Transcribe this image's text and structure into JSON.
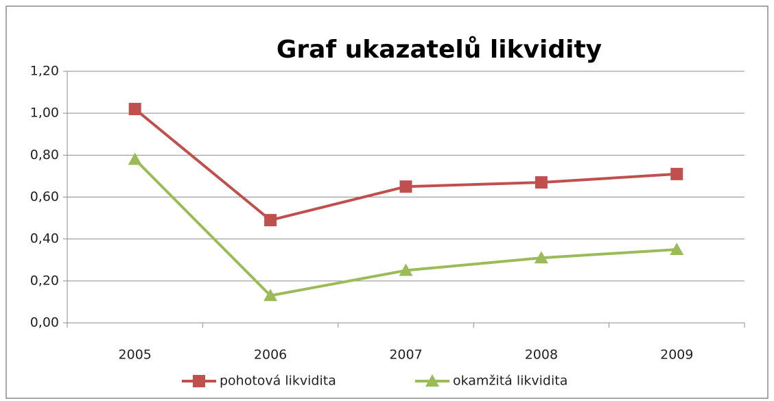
{
  "chart_data": {
    "type": "line",
    "title": "Graf ukazatelů likvidity",
    "categories": [
      "2005",
      "2006",
      "2007",
      "2008",
      "2009"
    ],
    "series": [
      {
        "name": "pohotová likvidita",
        "color": "#c0504d",
        "marker": "square",
        "values": [
          1.02,
          0.49,
          0.65,
          0.67,
          0.71
        ]
      },
      {
        "name": "okamžitá likvidita",
        "color": "#9bbb59",
        "marker": "triangle",
        "values": [
          0.78,
          0.13,
          0.25,
          0.31,
          0.35
        ]
      }
    ],
    "ylim": [
      0,
      1.2
    ],
    "yticks": [
      {
        "value": 0,
        "label": "0,00"
      },
      {
        "value": 0.2,
        "label": "0,20"
      },
      {
        "value": 0.4,
        "label": "0,40"
      },
      {
        "value": 0.6,
        "label": "0,60"
      },
      {
        "value": 0.8,
        "label": "0,80"
      },
      {
        "value": 1.0,
        "label": "1,00"
      },
      {
        "value": 1.2,
        "label": "1,20"
      }
    ],
    "grid": true,
    "legend": "bottom"
  }
}
